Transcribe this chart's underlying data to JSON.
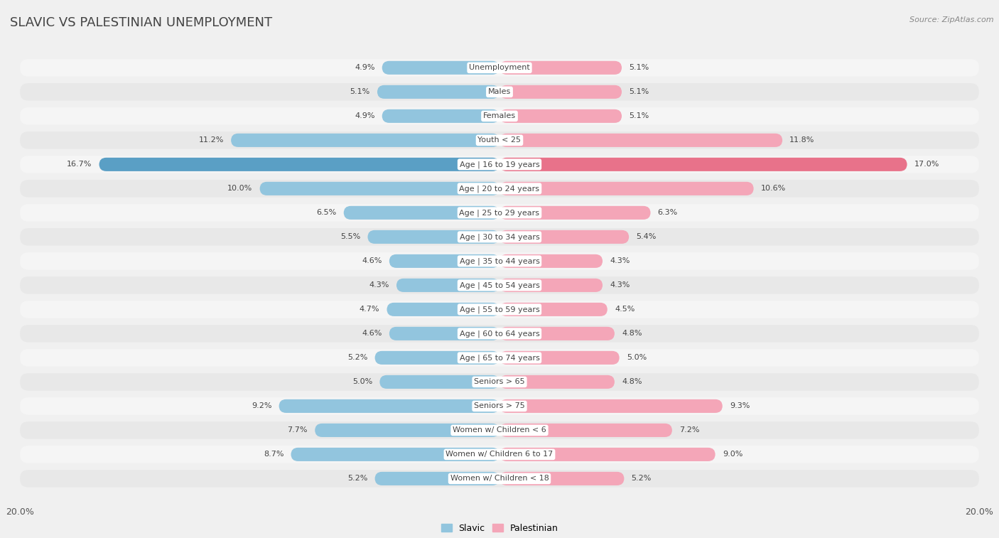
{
  "title": "SLAVIC VS PALESTINIAN UNEMPLOYMENT",
  "source": "Source: ZipAtlas.com",
  "categories": [
    "Unemployment",
    "Males",
    "Females",
    "Youth < 25",
    "Age | 16 to 19 years",
    "Age | 20 to 24 years",
    "Age | 25 to 29 years",
    "Age | 30 to 34 years",
    "Age | 35 to 44 years",
    "Age | 45 to 54 years",
    "Age | 55 to 59 years",
    "Age | 60 to 64 years",
    "Age | 65 to 74 years",
    "Seniors > 65",
    "Seniors > 75",
    "Women w/ Children < 6",
    "Women w/ Children 6 to 17",
    "Women w/ Children < 18"
  ],
  "slavic": [
    4.9,
    5.1,
    4.9,
    11.2,
    16.7,
    10.0,
    6.5,
    5.5,
    4.6,
    4.3,
    4.7,
    4.6,
    5.2,
    5.0,
    9.2,
    7.7,
    8.7,
    5.2
  ],
  "palestinian": [
    5.1,
    5.1,
    5.1,
    11.8,
    17.0,
    10.6,
    6.3,
    5.4,
    4.3,
    4.3,
    4.5,
    4.8,
    5.0,
    4.8,
    9.3,
    7.2,
    9.0,
    5.2
  ],
  "slavic_color": "#92c5de",
  "palestinian_color": "#f4a6b8",
  "highlight_slavic_color": "#5a9fc5",
  "highlight_palestinian_color": "#e8728a",
  "row_bg_odd": "#f5f5f5",
  "row_bg_even": "#e8e8e8",
  "bar_bg_color": "#dcdcdc",
  "xlim": 20.0,
  "bg_color": "#f0f0f0",
  "legend_slavic": "Slavic",
  "legend_palestinian": "Palestinian",
  "title_color": "#444444",
  "label_color": "#444444",
  "value_color": "#444444"
}
